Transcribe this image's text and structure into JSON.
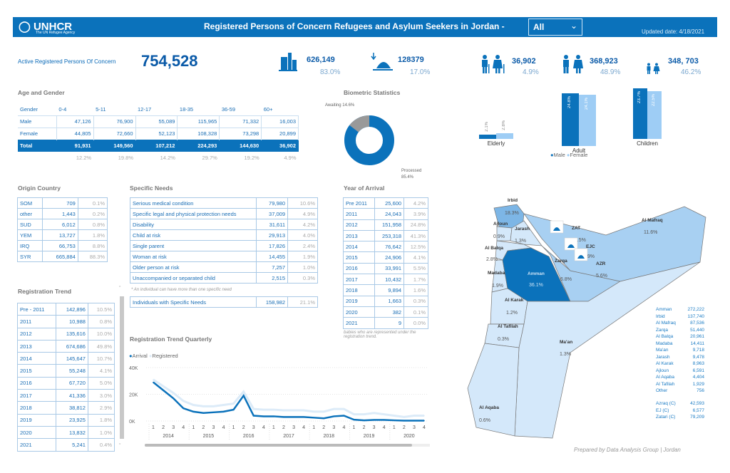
{
  "header": {
    "logo": "UNHCR",
    "logo_sub": "The UN Refugee Agency",
    "title": "Registered Persons of Concern Refugees and Asylum Seekers in Jordan -",
    "filter_value": "All",
    "updated": "Updated date: 4/18/2021"
  },
  "kpis": {
    "active_label": "Active Registered Persons Of Concern",
    "active_value": "754,528",
    "urban": {
      "icon": "city-buildings-icon",
      "value": "626,149",
      "pct": "83.0%"
    },
    "camp": {
      "icon": "camp-tent-icon",
      "value": "128379",
      "pct": "17.0%"
    },
    "elderly": {
      "icon": "elderly-couple-icon",
      "value": "36,902",
      "pct": "4.9%"
    },
    "adult": {
      "icon": "adult-couple-icon",
      "value": "368,923",
      "pct": "48.9%"
    },
    "children": {
      "icon": "children-icon",
      "value": "348, 703",
      "pct": "46.2%"
    }
  },
  "age_gender": {
    "title": "Age and Gender",
    "columns": [
      "Gender",
      "0-4",
      "5-11",
      "12-17",
      "18-35",
      "36-59",
      "60+"
    ],
    "rows": [
      [
        "Male",
        "47,126",
        "76,900",
        "55,089",
        "115,965",
        "71,332",
        "16,003"
      ],
      [
        "Female",
        "44,805",
        "72,660",
        "52,123",
        "108,328",
        "73,298",
        "20,899"
      ],
      [
        "Total",
        "91,931",
        "149,560",
        "107,212",
        "224,293",
        "144,630",
        "36,902"
      ]
    ],
    "percents": [
      "",
      "12.2%",
      "19.8%",
      "14.2%",
      "29.7%",
      "19.2%",
      "4.9%"
    ]
  },
  "biometric": {
    "title": "Biometric Statistics",
    "awaiting_label": "Awaiting 14.6%",
    "processed_label": "Processed",
    "processed_pct": "85.4%",
    "processed_value": 85.4,
    "awaiting_value": 14.6,
    "colors": {
      "processed": "#0b72bb",
      "awaiting": "#999999"
    }
  },
  "gender_bars": {
    "groups": [
      {
        "label": "Elderly",
        "male": "2.1%",
        "female": "2.8%",
        "male_v": 2.1,
        "female_v": 2.8
      },
      {
        "label": "Adult",
        "male": "24.8%",
        "female": "24.1%",
        "male_v": 24.8,
        "female_v": 24.1
      },
      {
        "label": "Children",
        "male": "23.7%",
        "female": "22.5%",
        "male_v": 23.7,
        "female_v": 22.5
      }
    ],
    "legend": [
      "Male",
      "Female"
    ],
    "colors": {
      "male": "#0b72bb",
      "female": "#9ecdf5"
    }
  },
  "origin": {
    "title": "Origin Country",
    "rows": [
      [
        "SOM",
        "709",
        "0.1%"
      ],
      [
        "other",
        "1,443",
        "0.2%"
      ],
      [
        "SUD",
        "6,012",
        "0.8%"
      ],
      [
        "YEM",
        "13,727",
        "1.8%"
      ],
      [
        "IRQ",
        "66,753",
        "8.8%"
      ],
      [
        "SYR",
        "665,884",
        "88.3%"
      ]
    ]
  },
  "needs": {
    "title": "Specific Needs",
    "rows": [
      [
        "Serious medical condition",
        "79,980",
        "10.6%"
      ],
      [
        "Specific legal and physical protection needs",
        "37,009",
        "4.9%"
      ],
      [
        "Disability",
        "31,611",
        "4.2%"
      ],
      [
        "Child at risk",
        "29,913",
        "4.0%"
      ],
      [
        "Single parent",
        "17,826",
        "2.4%"
      ],
      [
        "Woman at risk",
        "14,455",
        "1.9%"
      ],
      [
        "Older person at risk",
        "7,257",
        "1.0%"
      ],
      [
        "Unaccompanied or separated child",
        "2,515",
        "0.3%"
      ]
    ],
    "footnote": "* An individual can have more than one specific need",
    "total": [
      "Individuals with Specific Needs",
      "158,982",
      "21.1%"
    ]
  },
  "arrival": {
    "title": "Year of Arrival",
    "rows": [
      [
        "Pre 2011",
        "25,600",
        "4.2%"
      ],
      [
        "2011",
        "24,043",
        "3.9%"
      ],
      [
        "2012",
        "151,958",
        "24.8%"
      ],
      [
        "2013",
        "253,318",
        "41.3%"
      ],
      [
        "2014",
        "76,642",
        "12.5%"
      ],
      [
        "2015",
        "24,906",
        "4.1%"
      ],
      [
        "2016",
        "33,991",
        "5.5%"
      ],
      [
        "2017",
        "10,432",
        "1.7%"
      ],
      [
        "2018",
        "9,894",
        "1.6%"
      ],
      [
        "2019",
        "1,663",
        "0.3%"
      ],
      [
        "2020",
        "382",
        "0.1%"
      ],
      [
        "2021",
        "9",
        "0.0%"
      ]
    ],
    "footnote": "babies who are represented under the registration trend."
  },
  "reg_trend": {
    "title": "Registration Trend",
    "rows": [
      [
        "Pre - 2011",
        "142,896",
        "10.5%"
      ],
      [
        "2011",
        "10,988",
        "0.8%"
      ],
      [
        "2012",
        "135,616",
        "10.0%"
      ],
      [
        "2013",
        "674,686",
        "49.8%"
      ],
      [
        "2014",
        "145,647",
        "10.7%"
      ],
      [
        "2015",
        "55,248",
        "4.1%"
      ],
      [
        "2016",
        "67,720",
        "5.0%"
      ],
      [
        "2017",
        "41,336",
        "3.0%"
      ],
      [
        "2018",
        "38,812",
        "2.9%"
      ],
      [
        "2019",
        "23,925",
        "1.8%"
      ],
      [
        "2020",
        "13,832",
        "1.0%"
      ],
      [
        "2021",
        "5,241",
        "0.4%"
      ]
    ]
  },
  "chart_data": {
    "type": "line",
    "title": "Registration Trend Quarterly",
    "legend_position": "top-left",
    "grid": true,
    "years": [
      "2014",
      "2015",
      "2016",
      "2017",
      "2018",
      "2019",
      "2020"
    ],
    "quarters": [
      "1",
      "2",
      "3",
      "4"
    ],
    "y_ticks": [
      "0K",
      "20K",
      "40K"
    ],
    "ylim": [
      0,
      40000
    ],
    "series": [
      {
        "name": "Arrival",
        "color": "#0b72bb",
        "values": [
          29000,
          23000,
          17000,
          9500,
          7000,
          6000,
          6500,
          7000,
          8500,
          19000,
          4000,
          3500,
          3500,
          3000,
          3000,
          3000,
          2500,
          2000,
          3500,
          4000,
          1000,
          500,
          800,
          800,
          500,
          300,
          300,
          300
        ]
      },
      {
        "name": "Registered",
        "color": "#dcebf8",
        "values": [
          31000,
          26000,
          21000,
          15000,
          12000,
          11000,
          11000,
          12000,
          13000,
          22000,
          9000,
          8500,
          8500,
          8000,
          8000,
          8000,
          7000,
          7000,
          9000,
          9000,
          5000,
          5000,
          6000,
          5000,
          4000,
          3000,
          4000,
          4000
        ]
      }
    ]
  },
  "map": {
    "regions": [
      {
        "name": "Irbid",
        "pct": "18.3%"
      },
      {
        "name": "Ajloun",
        "pct": "0.9%"
      },
      {
        "name": "Jarash",
        "pct": "1.3%"
      },
      {
        "name": "Al Balqa",
        "pct": "2.8%"
      },
      {
        "name": "Madaba",
        "pct": "1.9%"
      },
      {
        "name": "Amman",
        "pct": "36.1%"
      },
      {
        "name": "Zarqa",
        "pct": "6.8%"
      },
      {
        "name": "Al Mafraq",
        "pct": "11.6%"
      },
      {
        "name": "Al Karak",
        "pct": "1.2%"
      },
      {
        "name": "Al Tafilah",
        "pct": "0.3%"
      },
      {
        "name": "Ma'an",
        "pct": "1.3%"
      },
      {
        "name": "Al Aqaba",
        "pct": "0.6%"
      }
    ],
    "camps": [
      {
        "name": "ZAT",
        "pct": "10.5%"
      },
      {
        "name": "EJC",
        "pct": "0.9%"
      },
      {
        "name": "AZR",
        "pct": "5.6%"
      }
    ],
    "list": [
      [
        "Amman",
        "272,222"
      ],
      [
        "Irbid",
        "137,740"
      ],
      [
        "Al Mafraq",
        "87,536"
      ],
      [
        "Zarqa",
        "51,440"
      ],
      [
        "Al Balqa",
        "20,961"
      ],
      [
        "Madaba",
        "14,411"
      ],
      [
        "Ma'an",
        "9,718"
      ],
      [
        "Jarash",
        "9,478"
      ],
      [
        "Al Karak",
        "8,963"
      ],
      [
        "Ajloun",
        "6,591"
      ],
      [
        "Al Aqaba",
        "4,404"
      ],
      [
        "Al Tafilah",
        "1,929"
      ],
      [
        "Other",
        "756"
      ]
    ],
    "camp_list": [
      [
        "Azraq (C)",
        "42,593"
      ],
      [
        "EJ (C)",
        "6,577"
      ],
      [
        "Zatari (C)",
        "79,209"
      ]
    ]
  },
  "footer": "Prepared by Data Analysis Group | Jordan"
}
